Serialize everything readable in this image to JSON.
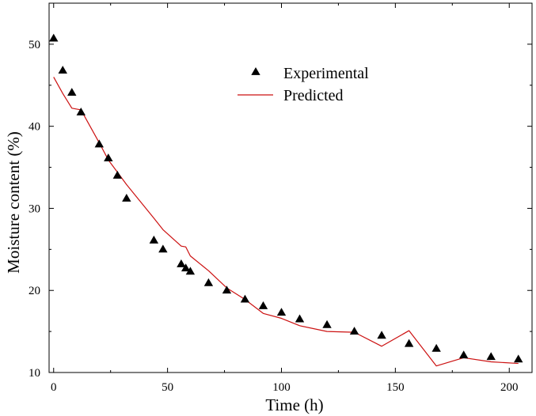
{
  "chart_data": {
    "type": "scatter",
    "xlabel": "Time (h)",
    "ylabel": "Moisture content (%)",
    "xlim": [
      -2,
      210
    ],
    "ylim": [
      10,
      55
    ],
    "xticks": [
      0,
      50,
      100,
      150,
      200
    ],
    "yticks": [
      10,
      20,
      30,
      40,
      50
    ],
    "grid": false,
    "legend_position": "top-center",
    "series": [
      {
        "name": "Experimental",
        "marker": "triangle",
        "color": "#000000",
        "x": [
          0,
          4,
          8,
          12,
          20,
          24,
          28,
          32,
          44,
          48,
          56,
          58,
          60,
          68,
          76,
          84,
          92,
          100,
          108,
          120,
          132,
          144,
          156,
          168,
          180,
          192,
          204
        ],
        "y": [
          50.7,
          46.8,
          44.1,
          41.7,
          37.8,
          36.1,
          34.0,
          31.2,
          26.1,
          25.0,
          23.2,
          22.7,
          22.3,
          20.9,
          20.0,
          18.9,
          18.1,
          17.3,
          16.5,
          15.8,
          15.0,
          14.5,
          13.5,
          12.9,
          12.1,
          11.9,
          11.6
        ]
      },
      {
        "name": "Predicted",
        "marker": "line",
        "color": "#cc1111",
        "x": [
          0,
          4,
          8,
          12,
          20,
          24,
          28,
          32,
          44,
          48,
          56,
          58,
          60,
          68,
          76,
          84,
          92,
          100,
          108,
          120,
          132,
          144,
          156,
          168,
          180,
          192,
          204
        ],
        "y": [
          46.0,
          44.0,
          42.2,
          42.0,
          38.0,
          35.9,
          34.4,
          32.9,
          28.8,
          27.4,
          25.4,
          25.3,
          24.2,
          22.4,
          20.3,
          18.9,
          17.2,
          16.6,
          15.7,
          15.0,
          14.9,
          13.2,
          15.1,
          10.8,
          11.8,
          11.3,
          11.1
        ]
      }
    ]
  }
}
